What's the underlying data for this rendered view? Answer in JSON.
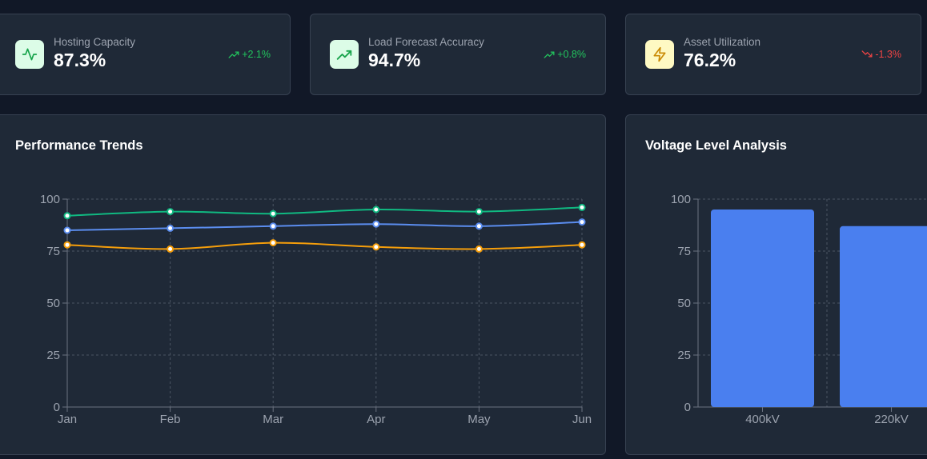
{
  "kpis": [
    {
      "label": "Hosting Capacity",
      "value": "87.3%",
      "change": "+2.1%",
      "trend": "up",
      "icon": "activity-icon",
      "icon_color": "#16a34a",
      "icon_bg": "#dcfce7",
      "change_color": "#22c55e"
    },
    {
      "label": "Load Forecast Accuracy",
      "value": "94.7%",
      "change": "+0.8%",
      "trend": "up",
      "icon": "trending-up-icon",
      "icon_color": "#16a34a",
      "icon_bg": "#dcfce7",
      "change_color": "#22c55e"
    },
    {
      "label": "Asset Utilization",
      "value": "76.2%",
      "change": "-1.3%",
      "trend": "down",
      "icon": "zap-icon",
      "icon_color": "#ca8a04",
      "icon_bg": "#fef9c3",
      "change_color": "#ef4444"
    }
  ],
  "performance": {
    "title": "Performance Trends",
    "chart_data": {
      "type": "line",
      "title": "Performance Trends",
      "categories": [
        "Jan",
        "Feb",
        "Mar",
        "Apr",
        "May",
        "Jun"
      ],
      "ylim": [
        0,
        100
      ],
      "yticks": [
        0,
        25,
        50,
        75,
        100
      ],
      "grid": true,
      "series": [
        {
          "name": "series-green",
          "color": "#10b981",
          "values": [
            92,
            94,
            93,
            95,
            94,
            96
          ]
        },
        {
          "name": "series-blue",
          "color": "#5b8def",
          "values": [
            85,
            86,
            87,
            88,
            87,
            89
          ]
        },
        {
          "name": "series-orange",
          "color": "#f59e0b",
          "values": [
            78,
            76,
            79,
            77,
            76,
            78
          ]
        }
      ]
    }
  },
  "voltage": {
    "title": "Voltage Level Analysis",
    "chart_data": {
      "type": "bar",
      "title": "Voltage Level Analysis",
      "categories": [
        "400kV",
        "220kV"
      ],
      "values": [
        95,
        87
      ],
      "ylim": [
        0,
        100
      ],
      "yticks": [
        0,
        25,
        50,
        75,
        100
      ],
      "grid": true,
      "color": "#4a7fef"
    }
  }
}
